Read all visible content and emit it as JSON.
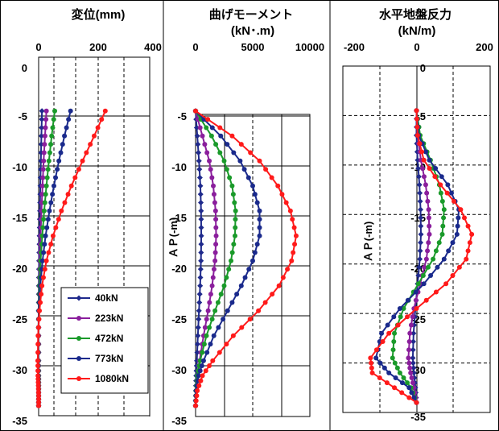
{
  "chart_data": [
    {
      "type": "line",
      "title": "変位(mm)",
      "subtitle": "",
      "ylabel": "",
      "xlim": [
        0,
        400
      ],
      "xticks": [
        "0",
        "200",
        "400"
      ],
      "ylim": [
        -35,
        0
      ],
      "yticks": [
        "0",
        "-5",
        "-10",
        "-15",
        "-20",
        "-25",
        "-30",
        "-35"
      ],
      "grid": "dashed vertical",
      "legend": "lower-right",
      "series": [
        {
          "name": "40kN",
          "color": "#1f2a8c",
          "x": [
            12,
            10,
            8,
            6,
            4.5,
            3,
            1.5,
            0.5,
            0,
            0,
            0,
            0,
            0,
            0,
            0
          ],
          "y": [
            -4.5,
            -7,
            -9.5,
            -12,
            -14.5,
            -17,
            -19.5,
            -22,
            -24.5,
            -27,
            -29.5,
            -31,
            -32,
            -33,
            -34
          ]
        },
        {
          "name": "223kN",
          "color": "#8a1e9c",
          "x": [
            28,
            23,
            18,
            14,
            10,
            7,
            4,
            2,
            0.5,
            0,
            0,
            0,
            0,
            0,
            0
          ],
          "y": [
            -4.5,
            -7,
            -9.5,
            -12,
            -14.5,
            -17,
            -19.5,
            -22,
            -24.5,
            -27,
            -29.5,
            -31,
            -32,
            -33,
            -34
          ]
        },
        {
          "name": "472kN",
          "color": "#1a9a2a",
          "x": [
            58,
            47,
            37,
            28,
            20,
            13,
            7,
            3,
            0.5,
            -1,
            -1,
            -0.5,
            0,
            0,
            0
          ],
          "y": [
            -4.5,
            -7,
            -9.5,
            -12,
            -14.5,
            -17,
            -19.5,
            -22,
            -24.5,
            -27,
            -29.5,
            -31,
            -32,
            -33,
            -34
          ]
        },
        {
          "name": "773kN",
          "color": "#1a2a8c",
          "x": [
            115,
            93,
            73,
            55,
            39,
            25,
            14,
            6,
            1,
            -1.5,
            -2,
            -1.5,
            -0.5,
            0,
            0
          ],
          "y": [
            -4.5,
            -7,
            -9.5,
            -12,
            -14.5,
            -17,
            -19.5,
            -22,
            -24.5,
            -27,
            -29.5,
            -31,
            -32,
            -33,
            -34
          ]
        },
        {
          "name": "1080kN",
          "color": "#ff1a1a",
          "x": [
            240,
            200,
            158,
            118,
            82,
            52,
            28,
            12,
            3,
            -2,
            -3,
            -2.5,
            -1,
            0,
            0
          ],
          "y": [
            -4.5,
            -7,
            -9.5,
            -12,
            -14.5,
            -17,
            -19.5,
            -22,
            -24.5,
            -27,
            -29.5,
            -31,
            -32,
            -33,
            -34
          ]
        }
      ]
    },
    {
      "type": "line",
      "title": "曲げモーメント",
      "subtitle": "(kN･.m)",
      "ylabel": "ＡＰ(-m)",
      "xlim": [
        0,
        10000
      ],
      "xticks": [
        "0",
        "5000",
        "10000"
      ],
      "ylim": [
        -35,
        0
      ],
      "yticks": [
        "-5",
        "-10",
        "-15",
        "-20",
        "-25",
        "-30",
        "-35"
      ],
      "grid": "solid and dashed",
      "series": [
        {
          "name": "40kN",
          "color": "#1f2a8c",
          "x": [
            0,
            150,
            300,
            420,
            480,
            500,
            470,
            400,
            300,
            200,
            110,
            50,
            15,
            0
          ],
          "y": [
            -4.5,
            -7,
            -9.5,
            -12,
            -14.5,
            -17,
            -19.5,
            -22,
            -24.5,
            -27,
            -29.5,
            -31,
            -32.5,
            -34
          ]
        },
        {
          "name": "223kN",
          "color": "#8a1e9c",
          "x": [
            0,
            600,
            1200,
            1550,
            1750,
            1800,
            1700,
            1450,
            1100,
            700,
            350,
            150,
            40,
            0
          ],
          "y": [
            -4.5,
            -7,
            -9.5,
            -12,
            -14.5,
            -17,
            -19.5,
            -22,
            -24.5,
            -27,
            -29.5,
            -31,
            -32.5,
            -34
          ]
        },
        {
          "name": "472kN",
          "color": "#1a9a2a",
          "x": [
            0,
            1400,
            2500,
            3200,
            3500,
            3450,
            3100,
            2500,
            1700,
            950,
            400,
            150,
            40,
            0
          ],
          "y": [
            -4.5,
            -7,
            -9.5,
            -12,
            -14.5,
            -17,
            -19.5,
            -22,
            -24.5,
            -27,
            -29.5,
            -31,
            -32.5,
            -34
          ]
        },
        {
          "name": "773kN",
          "color": "#1a2a8c",
          "x": [
            0,
            2200,
            3900,
            5000,
            5600,
            5600,
            5000,
            4000,
            2800,
            1600,
            700,
            250,
            60,
            0
          ],
          "y": [
            -4.5,
            -7,
            -9.5,
            -12,
            -14.5,
            -17,
            -19.5,
            -22,
            -24.5,
            -27,
            -29.5,
            -31,
            -32.5,
            -34
          ]
        },
        {
          "name": "1080kN",
          "color": "#ff1a1a",
          "x": [
            0,
            3200,
            5600,
            7200,
            8300,
            8800,
            8400,
            7300,
            5500,
            3300,
            1500,
            600,
            150,
            0
          ],
          "y": [
            -4.5,
            -7,
            -9.5,
            -12,
            -14.5,
            -17,
            -19.5,
            -22,
            -24.5,
            -27,
            -29.5,
            -31,
            -32.5,
            -34
          ]
        }
      ]
    },
    {
      "type": "line",
      "title": "水平地盤反力",
      "subtitle": "(kN/m)",
      "ylabel": "ＡＰ(-m)",
      "xlim": [
        -200,
        200
      ],
      "xticks": [
        "-200",
        "0",
        "200"
      ],
      "ylim": [
        -35,
        0
      ],
      "yticks": [
        "0",
        "-5",
        "-10",
        "-15",
        "-20",
        "-25",
        "-30",
        "-35"
      ],
      "grid": "dashed",
      "series": [
        {
          "name": "40kN",
          "color": "#1f2a8c",
          "x": [
            0,
            0,
            3,
            8,
            11,
            12,
            9,
            3,
            -3,
            -8,
            -10,
            -7,
            -3,
            0
          ],
          "y": [
            -4.5,
            -7,
            -9.5,
            -12,
            -14.5,
            -17,
            -19.5,
            -22,
            -24.5,
            -27,
            -29.5,
            -31,
            -32.5,
            -34
          ]
        },
        {
          "name": "223kN",
          "color": "#8a1e9c",
          "x": [
            0,
            3,
            12,
            25,
            33,
            35,
            27,
            10,
            -7,
            -18,
            -22,
            -16,
            -7,
            0
          ],
          "y": [
            -4.5,
            -7,
            -9.5,
            -12,
            -14.5,
            -17,
            -19.5,
            -22,
            -24.5,
            -27,
            -29.5,
            -31,
            -32.5,
            -34
          ]
        },
        {
          "name": "472kN",
          "color": "#1a9a2a",
          "x": [
            0,
            10,
            38,
            62,
            75,
            70,
            45,
            5,
            -35,
            -60,
            -65,
            -45,
            -15,
            0
          ],
          "y": [
            -4.5,
            -7,
            -9.5,
            -12,
            -14.5,
            -17,
            -19.5,
            -22,
            -24.5,
            -27,
            -29.5,
            -31,
            -32.5,
            -34
          ]
        },
        {
          "name": "773kN",
          "color": "#1a2a8c",
          "x": [
            0,
            6,
            35,
            85,
            115,
            110,
            75,
            20,
            -45,
            -95,
            -110,
            -75,
            -20,
            0
          ],
          "y": [
            -4.5,
            -7,
            -9.5,
            -12,
            -14.5,
            -17,
            -19.5,
            -22,
            -24.5,
            -27,
            -29.5,
            -31,
            -32.5,
            -34
          ]
        },
        {
          "name": "1080kN",
          "color": "#ff1a1a",
          "x": [
            0,
            3,
            20,
            65,
            120,
            150,
            135,
            80,
            0,
            -75,
            -125,
            -120,
            -60,
            0
          ],
          "y": [
            -4.5,
            -7,
            -9.5,
            -12,
            -14.5,
            -17,
            -19.5,
            -22,
            -24.5,
            -27,
            -29.5,
            -31,
            -32.5,
            -34
          ]
        }
      ]
    }
  ]
}
